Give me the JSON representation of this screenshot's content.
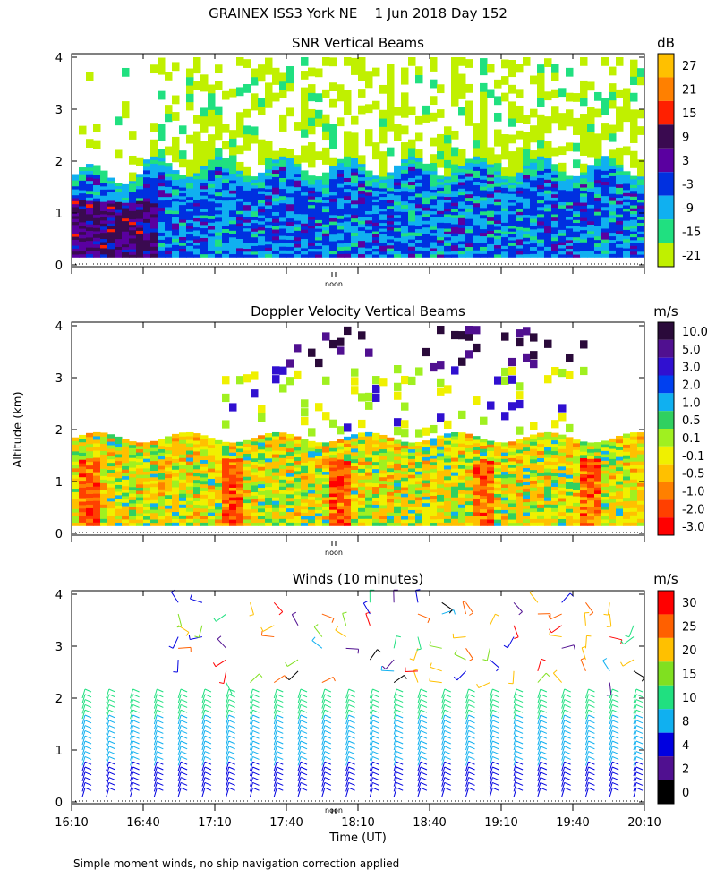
{
  "page": {
    "title": "GRAINEX ISS3 York NE    1 Jun 2018 Day 152",
    "footnote": "Simple moment winds, no ship navigation correction applied",
    "shared_ylabel": "Altitude (km)",
    "xlabel": "Time (UT)",
    "noon_label": "noon"
  },
  "chart_data": [
    {
      "type": "heatmap",
      "title": "SNR Vertical Beams",
      "unit": "dB",
      "yticks": [
        "0",
        "1",
        "2",
        "3",
        "4"
      ],
      "ylim": [
        0,
        4
      ],
      "colorbar": {
        "labels": [
          "27",
          "21",
          "15",
          "9",
          "3",
          "-3",
          "-9",
          "-15",
          "-21"
        ],
        "colors": [
          "#ffc000",
          "#ff8000",
          "#ff2000",
          "#3a0a50",
          "#5a00a0",
          "#0030e0",
          "#10b0f0",
          "#20e080",
          "#c0f000"
        ]
      }
    },
    {
      "type": "heatmap",
      "title": "Doppler Velocity Vertical Beams",
      "unit": "m/s",
      "yticks": [
        "0",
        "1",
        "2",
        "3",
        "4"
      ],
      "ylim": [
        0,
        4
      ],
      "colorbar": {
        "labels": [
          "10.0",
          "5.0",
          "3.0",
          "2.0",
          "1.0",
          "0.5",
          "0.1",
          "-0.1",
          "-0.5",
          "-1.0",
          "-2.0",
          "-3.0"
        ],
        "colors": [
          "#2a0a3a",
          "#501090",
          "#3010d0",
          "#0040f0",
          "#10b0f0",
          "#30d060",
          "#a0f020",
          "#f0f000",
          "#ffc000",
          "#ff8000",
          "#ff4000",
          "#ff0000"
        ]
      }
    },
    {
      "type": "scatter",
      "title": "Winds (10 minutes)",
      "unit": "m/s",
      "yticks": [
        "0",
        "1",
        "2",
        "3",
        "4"
      ],
      "ylim": [
        0,
        4
      ],
      "x": [
        "16:10",
        "16:40",
        "17:10",
        "17:40",
        "18:10",
        "18:40",
        "19:10",
        "19:40",
        "20:10"
      ],
      "colorbar": {
        "labels": [
          "30",
          "25",
          "20",
          "15",
          "10",
          "8",
          "4",
          "2",
          "0"
        ],
        "colors": [
          "#ff0000",
          "#ff6000",
          "#ffc000",
          "#80e020",
          "#20e080",
          "#10b0f0",
          "#0000e0",
          "#501090",
          "#000000"
        ]
      }
    }
  ]
}
